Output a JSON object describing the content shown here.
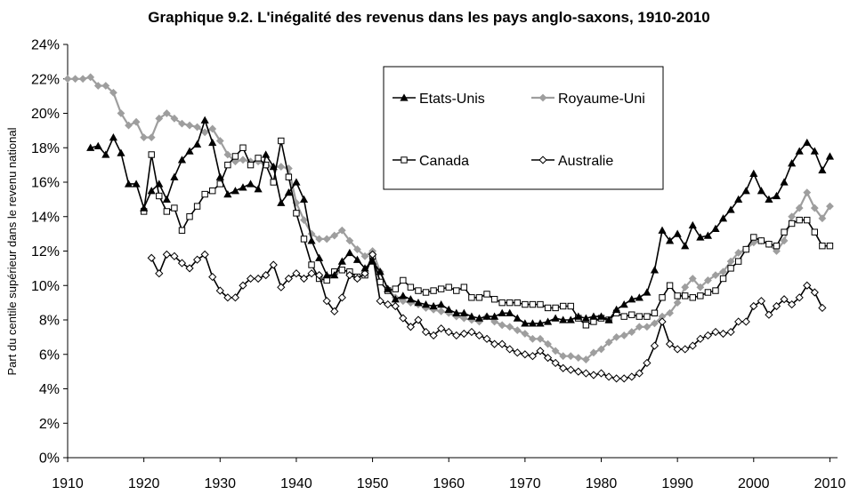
{
  "chart_data": {
    "type": "line",
    "title": "Graphique 9.2. L'inégalité des revenus dans les pays anglo-saxons, 1910-2010",
    "xlabel": "",
    "ylabel": "Part du centile supérieur dans le revenu national",
    "xlim": [
      1910,
      2011
    ],
    "ylim": [
      0,
      24
    ],
    "x_ticks": [
      "1910",
      "1920",
      "1930",
      "1940",
      "1950",
      "1960",
      "1970",
      "1980",
      "1990",
      "2000",
      "2010"
    ],
    "y_ticks": [
      "0%",
      "2%",
      "4%",
      "6%",
      "8%",
      "10%",
      "12%",
      "14%",
      "16%",
      "18%",
      "20%",
      "22%",
      "24%"
    ],
    "grid": false,
    "legend": "top-center, boxed, 2 columns",
    "series": [
      {
        "name": "Etats-Unis",
        "color": "#000000",
        "marker": "filled-triangle",
        "x": [
          1913,
          1914,
          1915,
          1916,
          1917,
          1918,
          1919,
          1920,
          1921,
          1922,
          1923,
          1924,
          1925,
          1926,
          1927,
          1928,
          1929,
          1930,
          1931,
          1932,
          1933,
          1934,
          1935,
          1936,
          1937,
          1938,
          1939,
          1940,
          1941,
          1942,
          1943,
          1944,
          1945,
          1946,
          1947,
          1948,
          1949,
          1950,
          1951,
          1952,
          1953,
          1954,
          1955,
          1956,
          1957,
          1958,
          1959,
          1960,
          1961,
          1962,
          1963,
          1964,
          1965,
          1966,
          1967,
          1968,
          1969,
          1970,
          1971,
          1972,
          1973,
          1974,
          1975,
          1976,
          1977,
          1978,
          1979,
          1980,
          1981,
          1982,
          1983,
          1984,
          1985,
          1986,
          1987,
          1988,
          1989,
          1990,
          1991,
          1992,
          1993,
          1994,
          1995,
          1996,
          1997,
          1998,
          1999,
          2000,
          2001,
          2002,
          2003,
          2004,
          2005,
          2006,
          2007,
          2008,
          2009,
          2010
        ],
        "values": [
          18.0,
          18.1,
          17.6,
          18.6,
          17.7,
          15.9,
          15.9,
          14.5,
          15.5,
          15.9,
          15.0,
          16.3,
          17.3,
          17.8,
          18.2,
          19.6,
          18.3,
          16.3,
          15.3,
          15.5,
          15.7,
          15.9,
          15.6,
          17.6,
          16.9,
          14.8,
          15.4,
          16.0,
          15.0,
          12.6,
          11.6,
          10.6,
          10.6,
          11.4,
          11.9,
          11.5,
          11.0,
          11.4,
          10.8,
          9.8,
          9.2,
          9.4,
          9.2,
          9.0,
          8.9,
          8.8,
          8.9,
          8.6,
          8.4,
          8.4,
          8.2,
          8.1,
          8.2,
          8.2,
          8.4,
          8.4,
          8.1,
          7.8,
          7.8,
          7.8,
          7.9,
          8.1,
          8.0,
          8.0,
          8.2,
          8.1,
          8.2,
          8.2,
          8.0,
          8.6,
          8.9,
          9.2,
          9.3,
          9.6,
          10.9,
          13.2,
          12.6,
          13.0,
          12.3,
          13.5,
          12.8,
          12.9,
          13.3,
          13.9,
          14.4,
          15.0,
          15.5,
          16.5,
          15.5,
          15.0,
          15.2,
          16.0,
          17.1,
          17.8,
          18.3,
          17.8,
          16.7,
          17.5
        ]
      },
      {
        "name": "Royaume-Uni",
        "color": "#9e9e9e",
        "marker": "filled-diamond",
        "x": [
          1910,
          1911,
          1912,
          1913,
          1914,
          1915,
          1916,
          1917,
          1918,
          1919,
          1920,
          1921,
          1922,
          1923,
          1924,
          1925,
          1926,
          1927,
          1928,
          1929,
          1930,
          1931,
          1932,
          1933,
          1934,
          1935,
          1936,
          1937,
          1938,
          1939,
          1940,
          1941,
          1942,
          1943,
          1944,
          1945,
          1946,
          1947,
          1948,
          1949,
          1950,
          1951,
          1952,
          1953,
          1954,
          1955,
          1956,
          1957,
          1958,
          1959,
          1960,
          1961,
          1962,
          1963,
          1964,
          1965,
          1966,
          1967,
          1968,
          1969,
          1970,
          1971,
          1972,
          1973,
          1974,
          1975,
          1976,
          1977,
          1978,
          1979,
          1980,
          1981,
          1982,
          1983,
          1984,
          1985,
          1986,
          1987,
          1988,
          1989,
          1990,
          1991,
          1992,
          1993,
          1994,
          1995,
          1996,
          1997,
          1998,
          1999,
          2000,
          2001,
          2002,
          2003,
          2004,
          2005,
          2006,
          2007,
          2008,
          2009,
          2010
        ],
        "values": [
          22.0,
          22.0,
          22.0,
          22.1,
          21.6,
          21.6,
          21.2,
          20.0,
          19.3,
          19.5,
          18.6,
          18.6,
          19.7,
          20.0,
          19.7,
          19.4,
          19.3,
          19.2,
          18.9,
          19.1,
          18.4,
          17.6,
          17.2,
          17.3,
          17.2,
          17.2,
          17.0,
          16.9,
          16.9,
          16.8,
          14.8,
          13.8,
          13.0,
          12.7,
          12.7,
          12.9,
          13.2,
          12.6,
          12.1,
          11.7,
          12.0,
          10.8,
          9.8,
          9.3,
          9.1,
          9.0,
          8.9,
          8.7,
          8.6,
          8.5,
          8.4,
          8.2,
          8.1,
          8.0,
          7.9,
          8.2,
          7.9,
          7.7,
          7.6,
          7.4,
          7.2,
          6.9,
          6.9,
          6.6,
          6.2,
          5.9,
          5.9,
          5.8,
          5.7,
          6.1,
          6.3,
          6.7,
          7.0,
          7.1,
          7.3,
          7.6,
          7.6,
          7.8,
          8.2,
          8.4,
          9.0,
          9.9,
          10.4,
          9.9,
          10.3,
          10.6,
          10.8,
          11.4,
          11.9,
          12.1,
          12.5,
          12.6,
          12.4,
          12.0,
          12.6,
          14.0,
          14.5,
          15.4,
          14.5,
          13.9,
          14.6
        ]
      },
      {
        "name": "Canada",
        "color": "#000000",
        "marker": "open-square",
        "x": [
          1920,
          1921,
          1922,
          1923,
          1924,
          1925,
          1926,
          1927,
          1928,
          1929,
          1930,
          1931,
          1932,
          1933,
          1934,
          1935,
          1936,
          1937,
          1938,
          1939,
          1940,
          1941,
          1942,
          1943,
          1944,
          1945,
          1946,
          1947,
          1948,
          1949,
          1950,
          1951,
          1952,
          1953,
          1954,
          1955,
          1956,
          1957,
          1958,
          1959,
          1960,
          1961,
          1962,
          1963,
          1964,
          1965,
          1966,
          1967,
          1968,
          1969,
          1970,
          1971,
          1972,
          1973,
          1974,
          1975,
          1976,
          1977,
          1978,
          1979,
          1980,
          1981,
          1982,
          1983,
          1984,
          1985,
          1986,
          1987,
          1988,
          1989,
          1990,
          1991,
          1992,
          1993,
          1994,
          1995,
          1996,
          1997,
          1998,
          1999,
          2000,
          2001,
          2002,
          2003,
          2004,
          2005,
          2006,
          2007,
          2008,
          2009,
          2010
        ],
        "values": [
          14.3,
          17.6,
          15.2,
          14.3,
          14.5,
          13.2,
          14.0,
          14.6,
          15.3,
          15.5,
          15.9,
          17.0,
          17.5,
          18.0,
          17.0,
          17.4,
          17.0,
          16.0,
          18.4,
          16.3,
          14.2,
          12.7,
          11.2,
          10.4,
          10.3,
          10.8,
          10.9,
          10.8,
          10.5,
          10.6,
          11.7,
          10.2,
          9.7,
          9.8,
          10.3,
          9.9,
          9.7,
          9.6,
          9.7,
          9.8,
          9.9,
          9.7,
          9.9,
          9.3,
          9.3,
          9.5,
          9.2,
          9.0,
          9.0,
          9.0,
          8.9,
          8.9,
          8.9,
          8.7,
          8.7,
          8.8,
          8.8,
          8.1,
          7.7,
          7.9,
          8.1,
          8.0,
          8.4,
          8.2,
          8.3,
          8.2,
          8.2,
          8.4,
          9.3,
          10.0,
          9.4,
          9.4,
          9.3,
          9.4,
          9.6,
          9.7,
          10.4,
          11.0,
          11.4,
          12.1,
          12.8,
          12.6,
          12.4,
          12.3,
          13.1,
          13.6,
          13.8,
          13.8,
          13.1,
          12.3,
          12.3
        ]
      },
      {
        "name": "Australie",
        "color": "#000000",
        "marker": "open-diamond",
        "x": [
          1921,
          1922,
          1923,
          1924,
          1925,
          1926,
          1927,
          1928,
          1929,
          1930,
          1931,
          1932,
          1933,
          1934,
          1935,
          1936,
          1937,
          1938,
          1939,
          1940,
          1941,
          1942,
          1943,
          1944,
          1945,
          1946,
          1947,
          1948,
          1949,
          1950,
          1951,
          1952,
          1953,
          1954,
          1955,
          1956,
          1957,
          1958,
          1959,
          1960,
          1961,
          1962,
          1963,
          1964,
          1965,
          1966,
          1967,
          1968,
          1969,
          1970,
          1971,
          1972,
          1973,
          1974,
          1975,
          1976,
          1977,
          1978,
          1979,
          1980,
          1981,
          1982,
          1983,
          1984,
          1985,
          1986,
          1987,
          1988,
          1989,
          1990,
          1991,
          1992,
          1993,
          1994,
          1995,
          1996,
          1997,
          1998,
          1999,
          2000,
          2001,
          2002,
          2003,
          2004,
          2005,
          2006,
          2007,
          2008,
          2009
        ],
        "values": [
          11.6,
          10.7,
          11.8,
          11.7,
          11.3,
          11.0,
          11.5,
          11.8,
          10.5,
          9.7,
          9.3,
          9.3,
          10.0,
          10.4,
          10.4,
          10.6,
          11.2,
          9.9,
          10.4,
          10.7,
          10.4,
          10.7,
          10.6,
          9.1,
          8.5,
          9.3,
          10.6,
          10.4,
          10.7,
          11.8,
          9.1,
          8.9,
          8.8,
          8.1,
          7.6,
          8.0,
          7.3,
          7.1,
          7.5,
          7.3,
          7.1,
          7.2,
          7.3,
          7.1,
          6.9,
          6.6,
          6.6,
          6.3,
          6.1,
          6.0,
          5.9,
          6.2,
          5.8,
          5.5,
          5.2,
          5.1,
          5.0,
          4.9,
          4.8,
          4.9,
          4.7,
          4.6,
          4.6,
          4.7,
          4.9,
          5.5,
          6.5,
          7.9,
          6.6,
          6.3,
          6.3,
          6.5,
          6.9,
          7.1,
          7.3,
          7.2,
          7.3,
          7.9,
          7.9,
          8.8,
          9.1,
          8.3,
          8.8,
          9.2,
          8.9,
          9.3,
          10.0,
          9.6,
          8.7
        ]
      }
    ]
  }
}
